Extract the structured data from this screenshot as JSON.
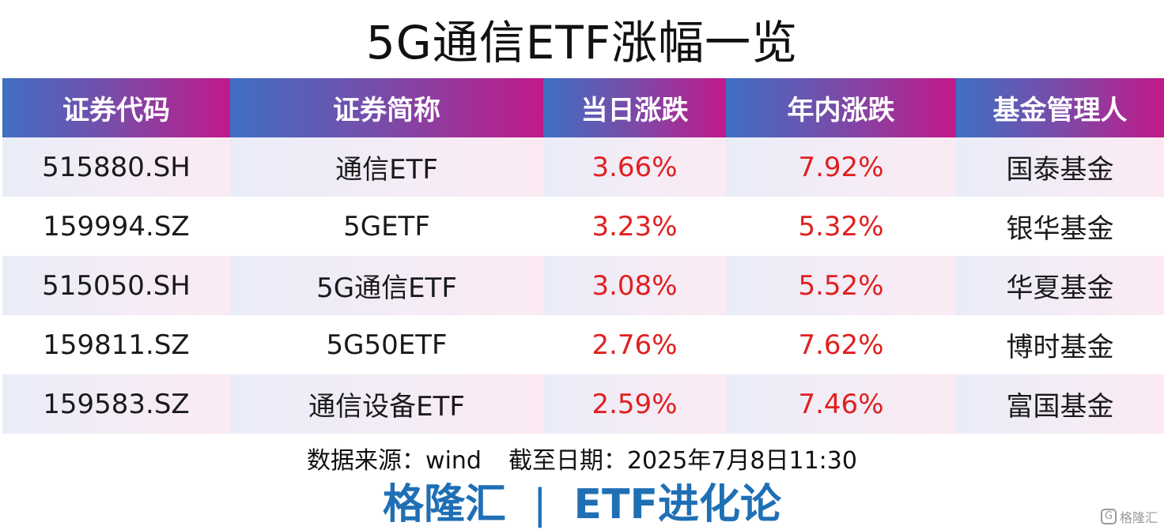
{
  "title": "5G通信ETF涨幅一览",
  "table": {
    "headers": [
      "证券代码",
      "证券简称",
      "当日涨跌",
      "年内涨跌",
      "基金管理人"
    ],
    "rows": [
      [
        "515880.SH",
        "通信ETF",
        "3.66%",
        "7.92%",
        "国泰基金"
      ],
      [
        "159994.SZ",
        "5GETF",
        "3.23%",
        "5.32%",
        "银华基金"
      ],
      [
        "515050.SH",
        "5G通信ETF",
        "3.08%",
        "5.52%",
        "华夏基金"
      ],
      [
        "159811.SZ",
        "5G50ETF",
        "2.76%",
        "7.62%",
        "博时基金"
      ],
      [
        "159583.SZ",
        "通信设备ETF",
        "2.59%",
        "7.46%",
        "富国基金"
      ]
    ]
  },
  "source": {
    "label": "数据来源：wind",
    "date": "截至日期：2025年7月8日11:30"
  },
  "footer": {
    "brand": "格隆汇",
    "separator": "|",
    "column": "ETF进化论"
  },
  "watermark": {
    "logo": "G",
    "text": "格隆汇"
  },
  "colors": {
    "header_gradient_start": "#3f6fc3",
    "header_gradient_end": "#c2198a",
    "positive": "#e02020",
    "footer": "#1f6fb5"
  }
}
